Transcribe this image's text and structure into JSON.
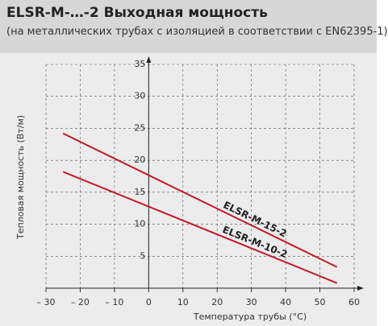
{
  "chart_data": {
    "type": "line",
    "title": "ELSR-M-…-2 Выходная мощность",
    "subtitle": "(на металлических трубах с изоляцией в соответствии с EN62395-1)",
    "x_label": "Температура трубы (°C)",
    "y_label": "Тепловая мощность (Вт/м)",
    "x": [
      -25,
      55
    ],
    "series": [
      {
        "name": "ELSR-M-15-2",
        "color": "#c01a2c",
        "values": [
          24.2,
          3.3
        ]
      },
      {
        "name": "ELSR-M-10-2",
        "color": "#c01a2c",
        "values": [
          18.2,
          0.8
        ]
      }
    ],
    "xlim": [
      -30,
      60
    ],
    "xticks": [
      {
        "value": -30,
        "label": "– 30"
      },
      {
        "value": -20,
        "label": "– 20"
      },
      {
        "value": -10,
        "label": "– 10"
      },
      0,
      10,
      20,
      30,
      40,
      50,
      60
    ],
    "ylim": [
      0,
      35
    ],
    "yticks": [
      5,
      10,
      15,
      20,
      25,
      30,
      35
    ],
    "grid": true
  }
}
